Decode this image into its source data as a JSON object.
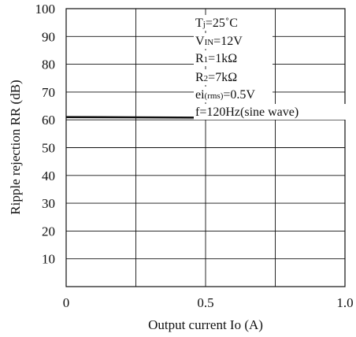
{
  "chart_data": {
    "type": "line",
    "title": "",
    "xlabel": "Output current Io (A)",
    "ylabel": "Ripple rejection RR (dB)",
    "xlim": [
      0,
      1.0
    ],
    "ylim": [
      0,
      100
    ],
    "x_ticks": [
      "0",
      "0.5",
      "1.0"
    ],
    "x_grid": [
      0,
      0.25,
      0.5,
      0.75,
      1.0
    ],
    "y_ticks": [
      10,
      20,
      30,
      40,
      50,
      60,
      70,
      80,
      90,
      100
    ],
    "grid": true,
    "series": [
      {
        "x": [
          0,
          0.25,
          0.5,
          0.75,
          1.0
        ],
        "y": [
          61,
          60.9,
          60.8,
          60.7,
          60.6
        ]
      }
    ],
    "conditions": [
      "Tj=25˚C",
      "VIN=12V",
      "R1=1kΩ",
      "R2=7kΩ",
      "ei(rms)=0.5V",
      "f=120Hz(sine wave)"
    ]
  }
}
